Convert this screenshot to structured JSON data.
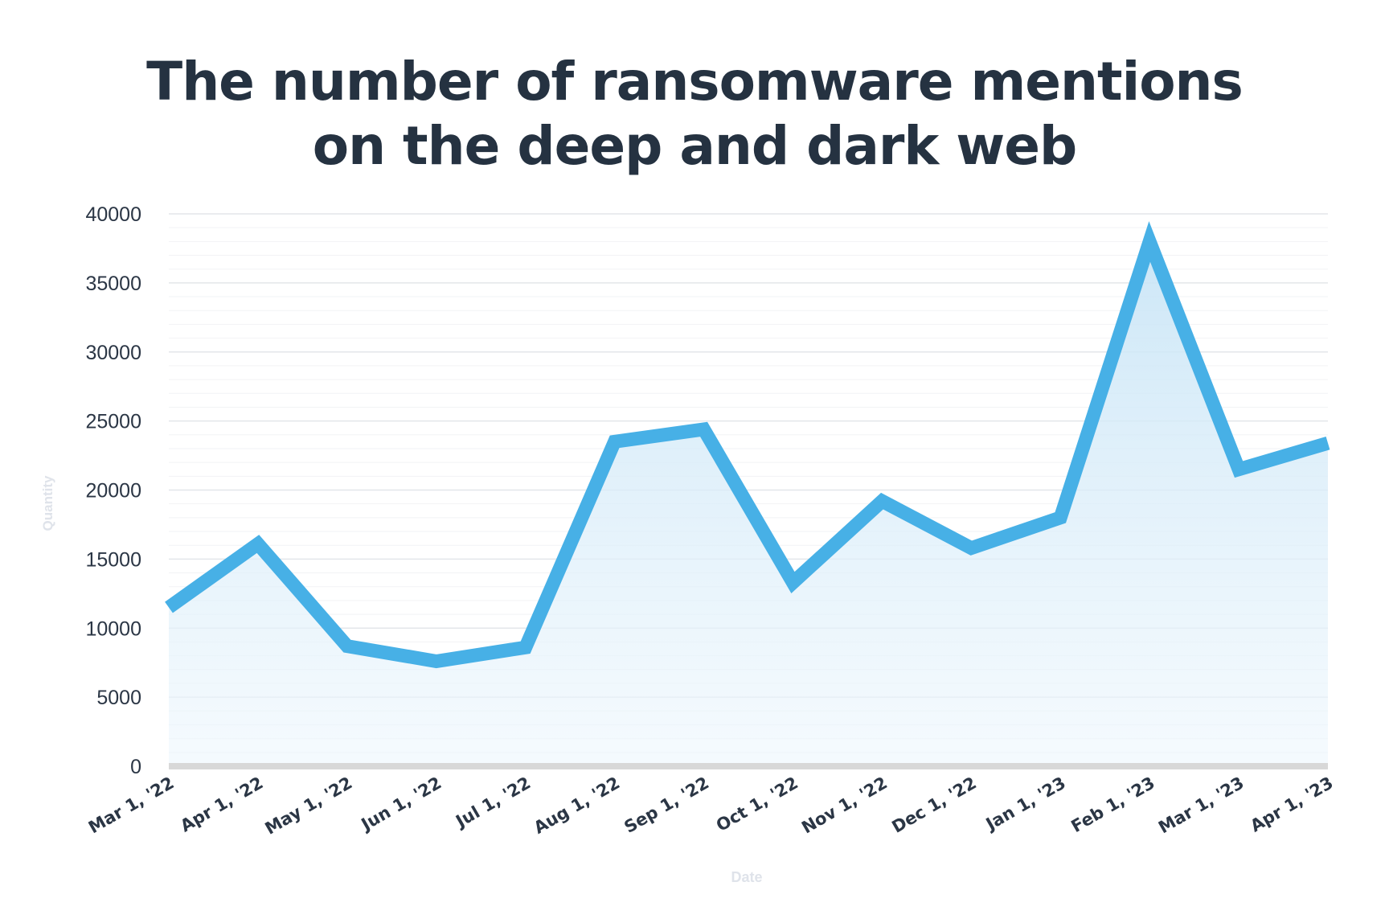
{
  "chart_data": {
    "type": "area",
    "title_lines": [
      "The number of ransomware mentions",
      "on the deep and dark web"
    ],
    "xlabel": "Date",
    "ylabel": "Quantity",
    "ylim": [
      0,
      40000
    ],
    "yticks": [
      0,
      5000,
      10000,
      15000,
      20000,
      25000,
      30000,
      35000,
      40000
    ],
    "categories": [
      "Mar 1, '22",
      "Apr 1, '22",
      "May 1, '22",
      "Jun 1, '22",
      "Jul 1, '22",
      "Aug 1, '22",
      "Sep 1, '22",
      "Oct 1, '22",
      "Nov 1, '22",
      "Dec 1, '22",
      "Jan 1, '23",
      "Feb 1, '23",
      "Mar 1, '23",
      "Apr 1, '23"
    ],
    "values": [
      11500,
      16100,
      8700,
      7600,
      8600,
      23500,
      24400,
      13300,
      19200,
      15800,
      18000,
      38000,
      21500,
      23400
    ],
    "grid": true,
    "colors": {
      "line": "#47b0e6",
      "fill": "#d3eaf8",
      "title": "#253241",
      "tick": "#2b3645",
      "axis_label": "#dfe3ea",
      "grid": "#e3e6ea",
      "grid_minor": "#f2f3f5",
      "baseline": "#d8d8d8"
    }
  }
}
